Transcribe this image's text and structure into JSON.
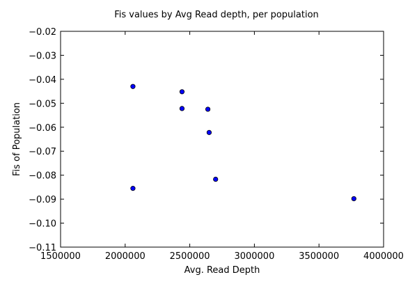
{
  "chart_data": {
    "type": "scatter",
    "title": "Fis values by Avg Read depth, per population",
    "xlabel": "Avg. Read Depth",
    "ylabel": "Fis of Population",
    "xlim": [
      1500000,
      4000000
    ],
    "ylim": [
      -0.11,
      -0.02
    ],
    "xticks": [
      {
        "value": 1500000,
        "label": "1500000"
      },
      {
        "value": 2000000,
        "label": "2000000"
      },
      {
        "value": 2500000,
        "label": "2500000"
      },
      {
        "value": 3000000,
        "label": "3000000"
      },
      {
        "value": 3500000,
        "label": "3500000"
      },
      {
        "value": 4000000,
        "label": "4000000"
      }
    ],
    "yticks": [
      {
        "value": -0.02,
        "label": "−0.02"
      },
      {
        "value": -0.03,
        "label": "−0.03"
      },
      {
        "value": -0.04,
        "label": "−0.04"
      },
      {
        "value": -0.05,
        "label": "−0.05"
      },
      {
        "value": -0.06,
        "label": "−0.06"
      },
      {
        "value": -0.07,
        "label": "−0.07"
      },
      {
        "value": -0.08,
        "label": "−0.08"
      },
      {
        "value": -0.09,
        "label": "−0.09"
      },
      {
        "value": -0.1,
        "label": "−0.10"
      },
      {
        "value": -0.11,
        "label": "−0.11"
      }
    ],
    "grid": false,
    "legend": "none",
    "marker_color": "#0000ff",
    "marker_edge": "#000000",
    "points": [
      {
        "x": 2060000,
        "y": -0.043
      },
      {
        "x": 2440000,
        "y": -0.0452
      },
      {
        "x": 2440000,
        "y": -0.0522
      },
      {
        "x": 2640000,
        "y": -0.0525
      },
      {
        "x": 2650000,
        "y": -0.0622
      },
      {
        "x": 2700000,
        "y": -0.0817
      },
      {
        "x": 2060000,
        "y": -0.0855
      },
      {
        "x": 3770000,
        "y": -0.0898
      }
    ]
  }
}
